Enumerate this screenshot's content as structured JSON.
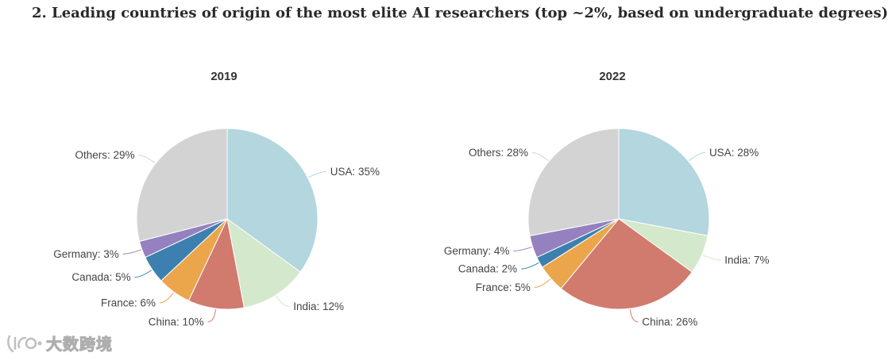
{
  "page": {
    "title": "2. Leading countries of origin of the most elite AI researchers (top ~2%, based on undergraduate degrees)"
  },
  "watermark": {
    "text": "大数跨境"
  },
  "chart_data": [
    {
      "type": "pie",
      "title": "2019",
      "start_angle_deg": 0,
      "direction": "clockwise",
      "slices": [
        {
          "key": "usa",
          "label": "USA: 35%",
          "name": "USA",
          "value": 35,
          "color": "#b3d6df",
          "label_side": "right"
        },
        {
          "key": "india",
          "label": "India: 12%",
          "name": "India",
          "value": 12,
          "color": "#d4e8cb",
          "label_side": "right"
        },
        {
          "key": "china",
          "label": "China: 10%",
          "name": "China",
          "value": 10,
          "color": "#d17a6e",
          "label_side": "left"
        },
        {
          "key": "france",
          "label": "France: 6%",
          "name": "France",
          "value": 6,
          "color": "#eba54b",
          "label_side": "left"
        },
        {
          "key": "canada",
          "label": "Canada: 5%",
          "name": "Canada",
          "value": 5,
          "color": "#3d80af",
          "label_side": "left"
        },
        {
          "key": "germany",
          "label": "Germany: 3%",
          "name": "Germany",
          "value": 3,
          "color": "#9581bf",
          "label_side": "left"
        },
        {
          "key": "others",
          "label": "Others: 29%",
          "name": "Others",
          "value": 29,
          "color": "#d3d3d3",
          "label_side": "left"
        }
      ]
    },
    {
      "type": "pie",
      "title": "2022",
      "start_angle_deg": 0,
      "direction": "clockwise",
      "slices": [
        {
          "key": "usa",
          "label": "USA: 28%",
          "name": "USA",
          "value": 28,
          "color": "#b3d6df",
          "label_side": "right"
        },
        {
          "key": "india",
          "label": "India: 7%",
          "name": "India",
          "value": 7,
          "color": "#d4e8cb",
          "label_side": "right"
        },
        {
          "key": "china",
          "label": "China: 26%",
          "name": "China",
          "value": 26,
          "color": "#d17a6e",
          "label_side": "right"
        },
        {
          "key": "france",
          "label": "France: 5%",
          "name": "France",
          "value": 5,
          "color": "#eba54b",
          "label_side": "left"
        },
        {
          "key": "canada",
          "label": "Canada: 2%",
          "name": "Canada",
          "value": 2,
          "color": "#3d80af",
          "label_side": "left"
        },
        {
          "key": "germany",
          "label": "Germany: 4%",
          "name": "Germany",
          "value": 4,
          "color": "#9581bf",
          "label_side": "left"
        },
        {
          "key": "others",
          "label": "Others: 28%",
          "name": "Others",
          "value": 28,
          "color": "#d3d3d3",
          "label_side": "left"
        }
      ]
    }
  ]
}
